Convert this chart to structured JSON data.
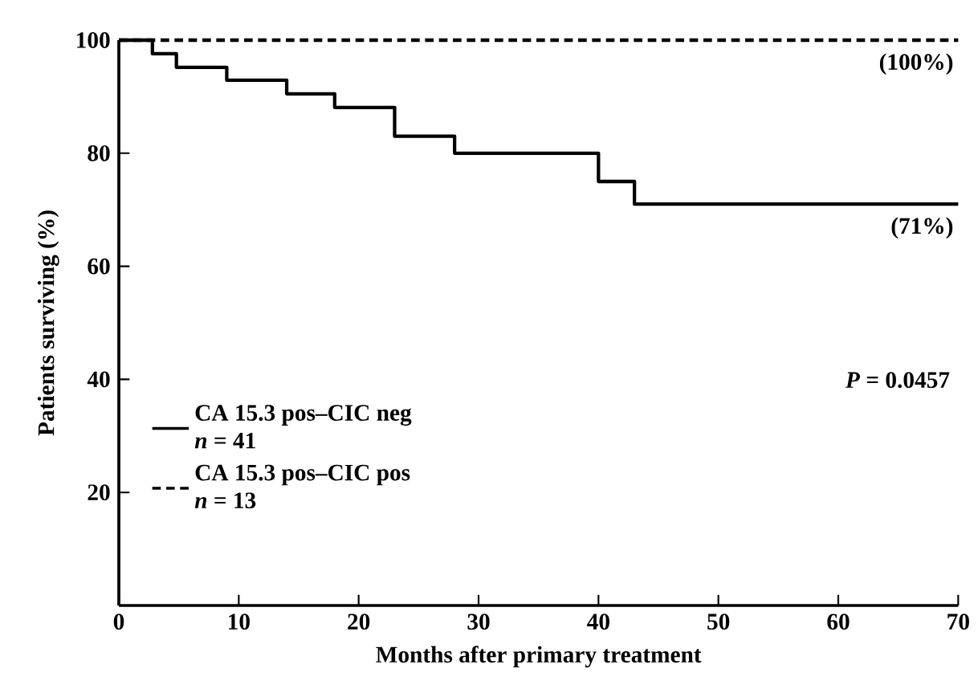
{
  "chart_data": {
    "type": "step",
    "xlabel": "Months after primary treatment",
    "ylabel": "Patients surviving (%)",
    "series": [
      {
        "name": "CA 15.3 pos–CIC neg",
        "color": "#000000",
        "line_style": "solid",
        "x": [
          0,
          2.8,
          4.8,
          9,
          14,
          18,
          23,
          28,
          40,
          43,
          70
        ],
        "values": [
          100,
          97.6,
          95.2,
          92.9,
          90.5,
          88.1,
          83,
          80,
          75,
          71,
          71
        ]
      },
      {
        "name": "CA 15.3 pos–CIC pos",
        "color": "#000000",
        "line_style": "dashed",
        "x": [
          0,
          70
        ],
        "values": [
          100,
          100
        ]
      }
    ],
    "xlim": [
      0,
      70
    ],
    "ylim": [
      0,
      100
    ],
    "xticks": [
      0,
      10,
      20,
      30,
      40,
      50,
      60,
      70
    ],
    "yticks": [
      20,
      40,
      60,
      80,
      100
    ],
    "legend": "left",
    "grid": false,
    "marker": "none",
    "annotations": [
      {
        "text": "(100%)",
        "x": 70,
        "y": 100
      },
      {
        "text": "(71%)",
        "x": 70,
        "y": 71
      },
      "*P* = 0.0457",
      "*n* = 41",
      "*n* = 13"
    ]
  }
}
